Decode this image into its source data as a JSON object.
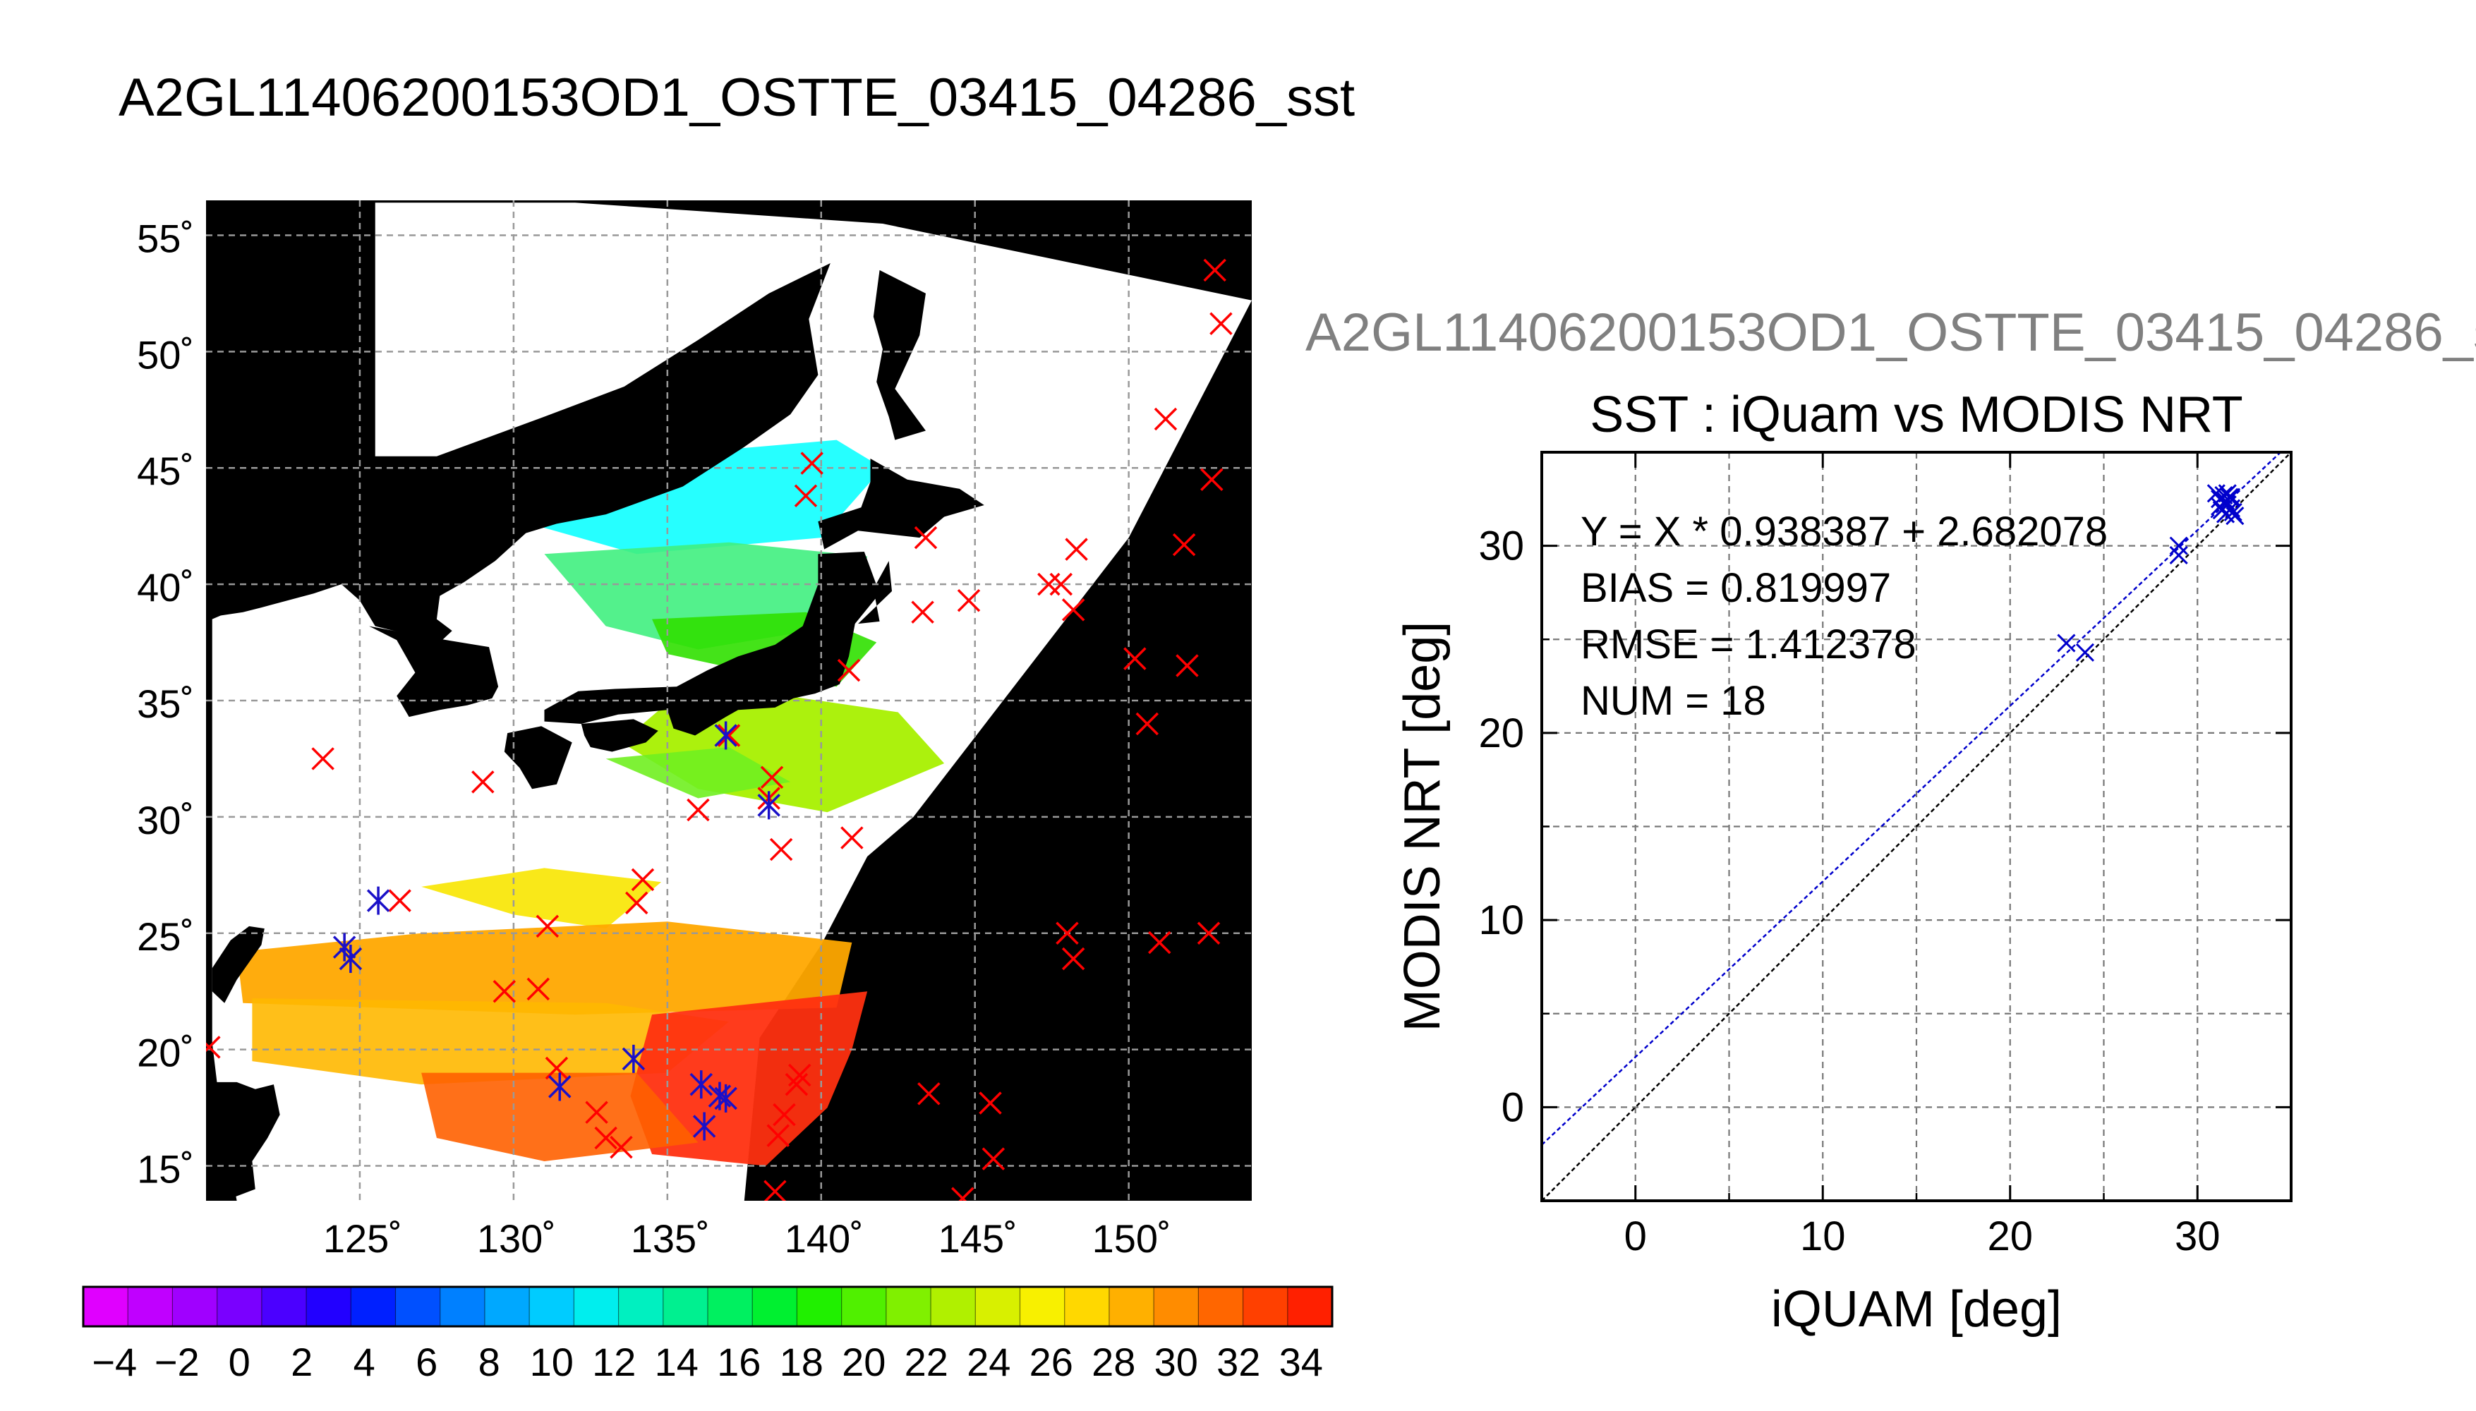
{
  "page": {
    "main_title": "A2GL11406200153OD1_OSTTE_03415_04286_sst",
    "sub_title": "A2GL11406200153OD1_OSTTE_03415_04286_s"
  },
  "chart_data": [
    {
      "type": "map",
      "lat_ticks": [
        "55˚",
        "50˚",
        "45˚",
        "40˚",
        "35˚",
        "30˚",
        "25˚",
        "20˚",
        "15˚"
      ],
      "lon_ticks": [
        "125˚",
        "130˚",
        "135˚",
        "140˚",
        "145˚",
        "150˚"
      ],
      "lat_values": [
        55,
        50,
        45,
        40,
        35,
        30,
        25,
        20,
        15
      ],
      "lon_values": [
        125,
        130,
        135,
        140,
        145,
        150
      ],
      "lon_range": [
        120,
        154
      ],
      "lat_range": [
        13.5,
        56.5
      ],
      "grid": true,
      "colorbar": {
        "ticks": [
          "−4",
          "−2",
          "0",
          "2",
          "4",
          "6",
          "8",
          "10",
          "12",
          "14",
          "16",
          "18",
          "20",
          "22",
          "24",
          "26",
          "28",
          "30",
          "32",
          "34"
        ],
        "tick_values": [
          -4,
          -2,
          0,
          2,
          4,
          6,
          8,
          10,
          12,
          14,
          16,
          18,
          20,
          22,
          24,
          26,
          28,
          30,
          32,
          34
        ],
        "range": [
          -5,
          35
        ],
        "colors": [
          "#e000ff",
          "#c000ff",
          "#a000ff",
          "#7a00ff",
          "#4b00ff",
          "#2200ff",
          "#0020ff",
          "#0050ff",
          "#0080ff",
          "#00a8ff",
          "#00ccff",
          "#00eeee",
          "#00f0c0",
          "#00f090",
          "#00f060",
          "#00f030",
          "#20f000",
          "#50f000",
          "#80f000",
          "#b0f000",
          "#d8f000",
          "#f8f000",
          "#ffd800",
          "#ffb000",
          "#ff8c00",
          "#ff6600",
          "#ff4000",
          "#ff2000"
        ]
      },
      "iquam_points_red": [
        [
          152.8,
          53.5
        ],
        [
          153,
          51.2
        ],
        [
          151.2,
          47.1
        ],
        [
          152.7,
          44.5
        ],
        [
          151.8,
          41.7
        ],
        [
          148.3,
          41.5
        ],
        [
          143.4,
          42
        ],
        [
          144.8,
          39.3
        ],
        [
          143.3,
          38.8
        ],
        [
          148.2,
          38.9
        ],
        [
          139.7,
          45.2
        ],
        [
          139.5,
          43.8
        ],
        [
          150.2,
          36.8
        ],
        [
          151.9,
          36.5
        ],
        [
          150.6,
          34.0
        ],
        [
          147.4,
          40.0
        ],
        [
          147.8,
          40.0
        ],
        [
          140.9,
          36.3
        ],
        [
          123.8,
          32.5
        ],
        [
          129.0,
          31.5
        ],
        [
          136.0,
          30.3
        ],
        [
          138.4,
          31.7
        ],
        [
          138.7,
          28.6
        ],
        [
          141.0,
          29.1
        ],
        [
          134.2,
          27.3
        ],
        [
          134.0,
          26.3
        ],
        [
          131.1,
          25.3
        ],
        [
          148.0,
          25.0
        ],
        [
          148.2,
          23.9
        ],
        [
          151.0,
          24.6
        ],
        [
          152.6,
          25.0
        ],
        [
          130.8,
          22.6
        ],
        [
          129.7,
          22.5
        ],
        [
          126.3,
          26.4
        ],
        [
          131.4,
          19.2
        ],
        [
          132.7,
          17.3
        ],
        [
          133.0,
          16.2
        ],
        [
          133.5,
          15.8
        ],
        [
          139.3,
          18.9
        ],
        [
          139.2,
          18.5
        ],
        [
          138.8,
          17.2
        ],
        [
          138.6,
          16.3
        ],
        [
          138.5,
          13.9
        ],
        [
          143.5,
          18.1
        ],
        [
          145.5,
          17.7
        ],
        [
          145.6,
          15.3
        ],
        [
          144.6,
          13.6
        ],
        [
          120.1,
          20.1
        ],
        [
          137.0,
          33.5
        ],
        [
          138.3,
          30.8
        ]
      ],
      "iquam_points_blue": [
        [
          125.6,
          26.4
        ],
        [
          124.5,
          24.4
        ],
        [
          124.7,
          23.9
        ],
        [
          131.5,
          18.4
        ],
        [
          133.9,
          19.6
        ],
        [
          136.1,
          18.5
        ],
        [
          136.7,
          18.0
        ],
        [
          136.9,
          17.9
        ],
        [
          136.2,
          16.7
        ],
        [
          136.9,
          33.5
        ],
        [
          138.3,
          30.5
        ]
      ]
    },
    {
      "type": "scatter",
      "title": "SST : iQuam vs MODIS NRT",
      "xlabel": "iQUAM [deg]",
      "ylabel": "MODIS NRT [deg]",
      "xlim": [
        -5,
        35
      ],
      "ylim": [
        -5,
        35
      ],
      "xticks": [
        0,
        10,
        20,
        30
      ],
      "yticks": [
        0,
        10,
        20,
        30
      ],
      "xtick_labels": [
        "0",
        "10",
        "20",
        "30"
      ],
      "ytick_labels": [
        "0",
        "10",
        "20",
        "30"
      ],
      "grid": true,
      "annotations": [
        "Y = X * 0.938387 + 2.682078",
        "BIAS = 0.819997",
        "RMSE = 1.412378",
        "NUM = 18"
      ],
      "fit": {
        "slope": 0.938387,
        "intercept": 2.682078,
        "color": "#0000cc"
      },
      "identity_line": {
        "color": "#000000"
      },
      "points_color": "#0000cc",
      "points": [
        [
          23.0,
          24.8
        ],
        [
          24.0,
          24.3
        ],
        [
          29.0,
          29.5
        ],
        [
          29.0,
          30.0
        ],
        [
          31.0,
          32.8
        ],
        [
          31.2,
          32.5
        ],
        [
          31.4,
          32.7
        ],
        [
          31.5,
          32.4
        ],
        [
          31.6,
          32.8
        ],
        [
          31.7,
          32.6
        ],
        [
          31.3,
          31.9
        ],
        [
          31.5,
          31.7
        ],
        [
          31.8,
          32.0
        ],
        [
          31.9,
          31.8
        ],
        [
          32.0,
          31.6
        ],
        [
          31.6,
          32.2
        ],
        [
          31.2,
          32.1
        ],
        [
          31.8,
          32.6
        ]
      ]
    }
  ]
}
